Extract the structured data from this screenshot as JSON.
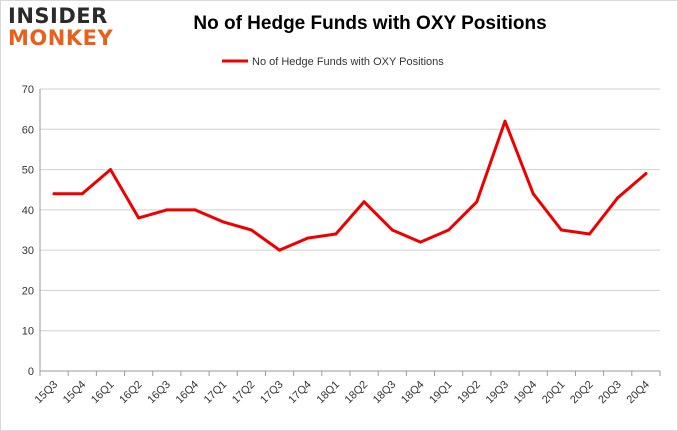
{
  "logo": {
    "line1": "INSIDER",
    "line2": "MONKEY"
  },
  "chart_data": {
    "type": "line",
    "title": "No of Hedge Funds with OXY Positions",
    "xlabel": "",
    "ylabel": "",
    "categories": [
      "15Q3",
      "15Q4",
      "16Q1",
      "16Q2",
      "16Q3",
      "16Q4",
      "17Q1",
      "17Q2",
      "17Q3",
      "17Q4",
      "18Q1",
      "18Q2",
      "18Q3",
      "18Q4",
      "19Q1",
      "19Q2",
      "19Q3",
      "19Q4",
      "20Q1",
      "20Q2",
      "20Q3",
      "20Q4"
    ],
    "series": [
      {
        "name": "No of Hedge Funds with OXY Positions",
        "color": "#ee0000",
        "values": [
          44,
          44,
          50,
          38,
          40,
          40,
          37,
          35,
          30,
          33,
          34,
          42,
          35,
          32,
          35,
          42,
          62,
          44,
          35,
          34,
          43,
          49
        ]
      }
    ],
    "ylim": [
      0,
      70
    ],
    "yticks": [
      0,
      10,
      20,
      30,
      40,
      50,
      60,
      70
    ],
    "grid": true,
    "legend_position": "top-center"
  }
}
